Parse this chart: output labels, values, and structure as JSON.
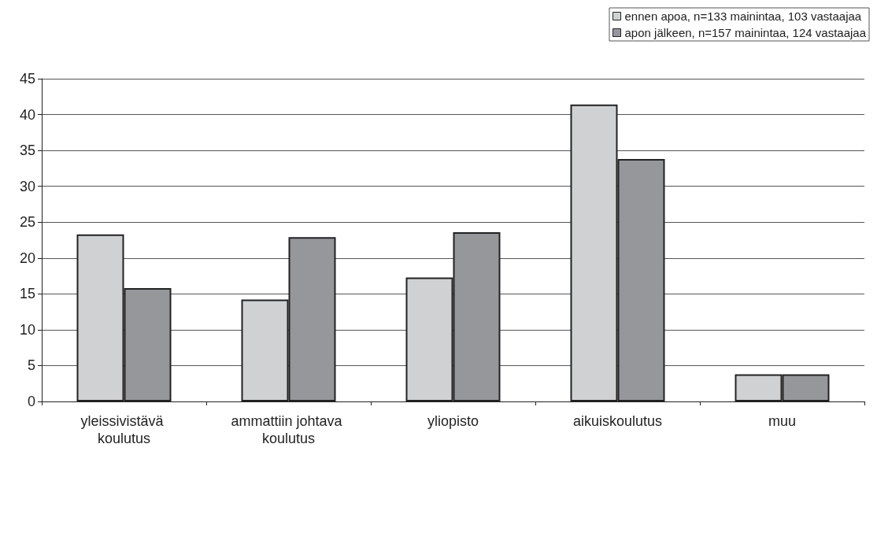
{
  "chart_data": {
    "type": "bar",
    "categories": [
      "yleissivistävä koulutus",
      "ammattiin johtava koulutus",
      "yliopisto",
      "aikuiskoulutus",
      "muu"
    ],
    "series": [
      {
        "name": "ennen apoa, n=133 mainintaa, 103 vastaajaa",
        "color": "#d0d1d3",
        "values": [
          23.3,
          14.2,
          17.3,
          41.4,
          3.8
        ]
      },
      {
        "name": "apon jälkeen, n=157 mainintaa, 124 vastaajaa",
        "color": "#96979b",
        "values": [
          15.8,
          22.9,
          23.6,
          33.8,
          3.8
        ]
      }
    ],
    "ylim": [
      0,
      45
    ],
    "yticks": [
      0,
      5,
      10,
      15,
      20,
      25,
      30,
      35,
      40,
      45
    ],
    "grid": "y",
    "legend": "top right"
  }
}
